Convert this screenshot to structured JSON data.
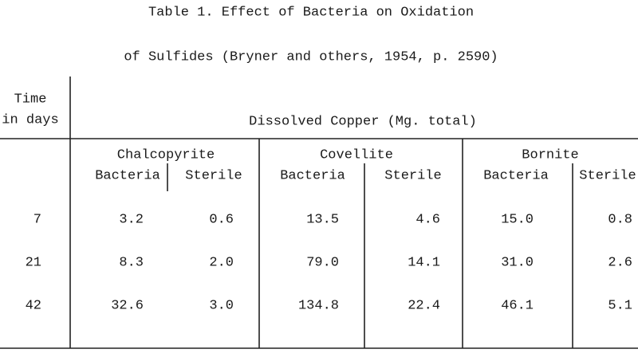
{
  "header": {
    "title": [
      "Table 1.  Effect of Bacteria on Oxidation",
      "of Sulfides (Bryner and others, 1954, p. 2590)"
    ]
  },
  "table": {
    "time_header": [
      "Time",
      "in days"
    ],
    "spanner": "Dissolved Copper (Mg. total)",
    "groups": [
      {
        "name": "Chalcopyrite",
        "subheaders": [
          "Bacteria",
          "Sterile"
        ]
      },
      {
        "name": "Covellite",
        "subheaders": [
          "Bacteria",
          "Sterile"
        ]
      },
      {
        "name": "Bornite",
        "subheaders": [
          "Bacteria",
          "Sterile"
        ]
      }
    ],
    "rows": [
      [
        "7",
        "3.2",
        "0.6",
        "13.5",
        "4.6",
        "15.0",
        "0.8"
      ],
      [
        "21",
        "8.3",
        "2.0",
        "79.0",
        "14.1",
        "31.0",
        "2.6"
      ],
      [
        "42",
        "32.6",
        "3.0",
        "134.8",
        "22.4",
        "46.1",
        "5.1"
      ]
    ]
  }
}
